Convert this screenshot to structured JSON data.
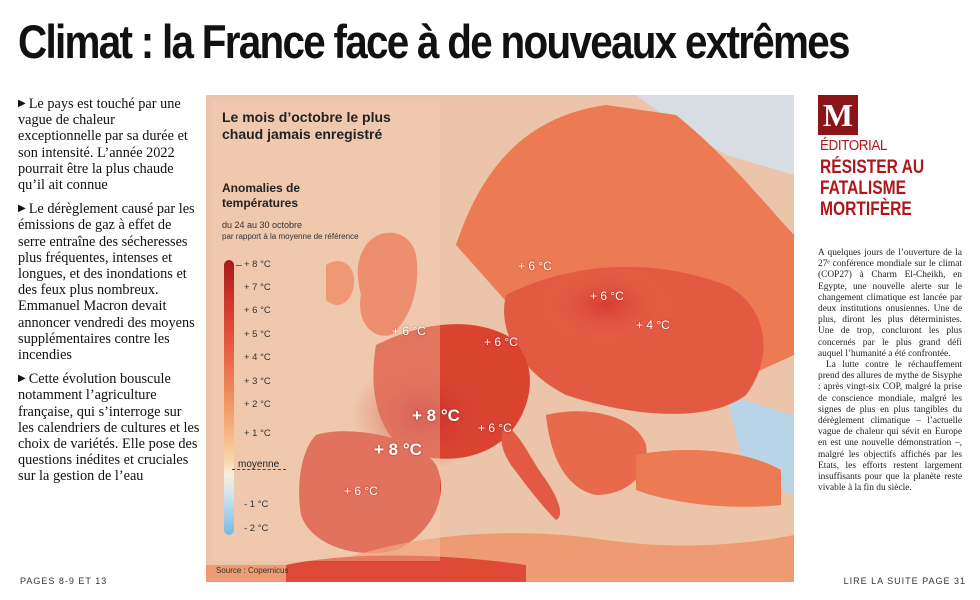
{
  "headline": "Climat : la France face à de nouveaux extrêmes",
  "left_column": {
    "paragraphs": [
      "Le pays est touché par une vague de chaleur exceptionnelle par sa durée et son intensité. L’année 2022 pourrait être la plus chaude qu’il ait connue",
      "Le dérèglement causé par les émissions de gaz à effet de serre entraîne des sécheresses plus fréquentes, intenses et longues, et des inondations et des feux plus nombreux. Emmanuel Macron devait annoncer vendredi des moyens supplémentaires contre les incendies",
      "Cette évolution bouscule notamment l’agriculture française, qui s’interroge sur les calendriers de cultures et les choix de variétés. Elle pose des questions inédites et cruciales sur la gestion de l’eau"
    ],
    "pages_ref": "PAGES 8-9 ET 13"
  },
  "map": {
    "title": "Le mois d’octobre le plus chaud jamais enregistré",
    "legend_title": "Anomalies de températures",
    "legend_period": "du 24 au 30 octobre",
    "legend_reference": "par rapport à la moyenne de référence",
    "legend_labels": [
      "+ 8 °C",
      "+ 7 °C",
      "+ 6 °C",
      "+ 5 °C",
      "+ 4 °C",
      "+ 3 °C",
      "+ 2 °C",
      "+ 1 °C",
      "moyenne",
      "- 1 °C",
      "- 2 °C"
    ],
    "source": "Source : Copernicus",
    "labels": [
      "+ 6 °C",
      "+ 6 °C",
      "+ 6 °C",
      "+ 4 °C",
      "+ 6 °C",
      "+ 8 °C",
      "+ 8 °C",
      "+ 6 °C",
      "+ 6 °C"
    ],
    "colors": {
      "deep_red": "#c8302a",
      "red": "#dd4b37",
      "orange": "#ec7a52",
      "light_orange": "#f3a170",
      "sea": "#dfe7ec",
      "cold_blue": "#b8d4e6"
    }
  },
  "editorial": {
    "logo": "M",
    "tag": "ÉDITORIAL",
    "title": "RÉSISTER AU FATALISME MORTIFÈRE",
    "paragraphs": [
      "A quelques jours de l’ouverture de la 27ᵉ conférence mondiale sur le climat (COP27) à Charm El-Cheikh, en Egypte, une nouvelle alerte sur le changement climatique est lancée par deux institutions onusiennes. Une de plus, diront les plus déterministes. Une de trop, concluront les plus concernés par le plus grand défi auquel l’humanité a été confrontée.",
      "La lutte contre le réchauffement prend des allures de mythe de Sisyphe : après vingt-six COP, malgré la prise de conscience mondiale, malgré les signes de plus en plus tangibles du dérèglement climatique – l’actuelle vague de chaleur qui sévit en Europe en est une nouvelle démonstration –, malgré les objectifs affichés par les Etats, les efforts restent largement insuffisants pour que la planète reste vivable à la fin du siècle."
    ],
    "read_more": "LIRE LA SUITE PAGE 31"
  }
}
